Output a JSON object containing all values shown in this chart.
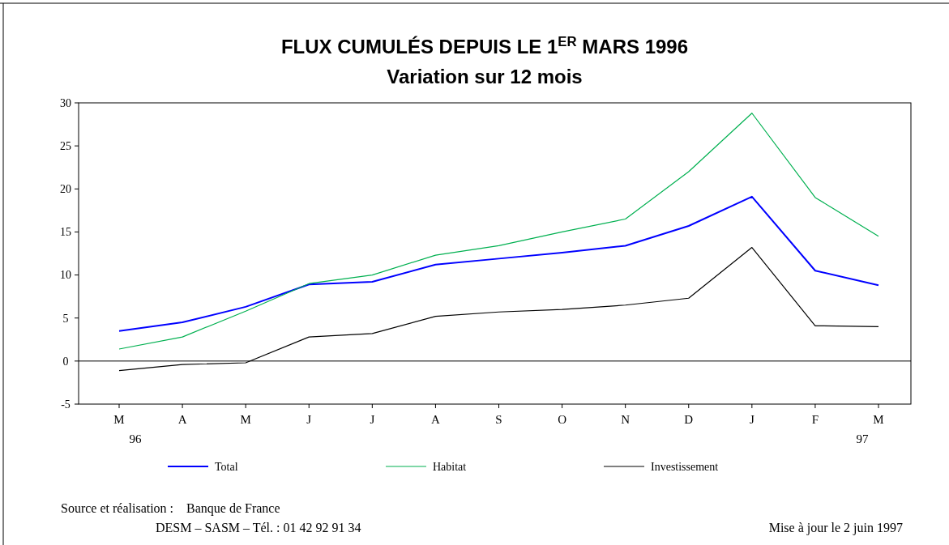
{
  "chart_data": {
    "type": "line",
    "title": "FLUX CUMULÉS DEPUIS LE 1$^{ER}$ MARS 1996",
    "subtitle": "Variation sur 12 mois",
    "categories": [
      "M\n96",
      "A",
      "M",
      "J",
      "J",
      "A",
      "S",
      "O",
      "N",
      "D",
      "J",
      "F",
      "M\n97"
    ],
    "series": [
      {
        "name": "Total",
        "color": "#0000ff",
        "values": [
          3.5,
          4.5,
          6.3,
          8.9,
          9.2,
          11.2,
          11.9,
          12.6,
          13.4,
          15.7,
          19.1,
          10.5,
          8.8
        ]
      },
      {
        "name": "Habitat",
        "color": "#00b050",
        "values": [
          1.4,
          2.8,
          5.8,
          9.0,
          10.0,
          12.3,
          13.4,
          15.0,
          16.5,
          22.0,
          28.8,
          19.0,
          14.5
        ]
      },
      {
        "name": "Investissement",
        "color": "#000000",
        "values": [
          -1.1,
          -0.4,
          -0.2,
          2.8,
          3.2,
          5.2,
          5.7,
          6.0,
          6.5,
          7.3,
          13.2,
          4.1,
          4.0
        ]
      }
    ],
    "ylim": [
      -5,
      30
    ],
    "yticks": [
      -5,
      0,
      5,
      10,
      15,
      20,
      25,
      30
    ],
    "grid": false,
    "legend": "bottom",
    "marker": "none",
    "line_style": "solid",
    "ref_lines": [
      {
        "axis": "y",
        "value": 0,
        "color": "#000000"
      }
    ],
    "annotations": [
      "Source et réalisation :    Banque de France",
      "DESM – SASM – Tél. : 01 42 92 91 34",
      "Mise à jour le 2 juin 1997"
    ]
  }
}
